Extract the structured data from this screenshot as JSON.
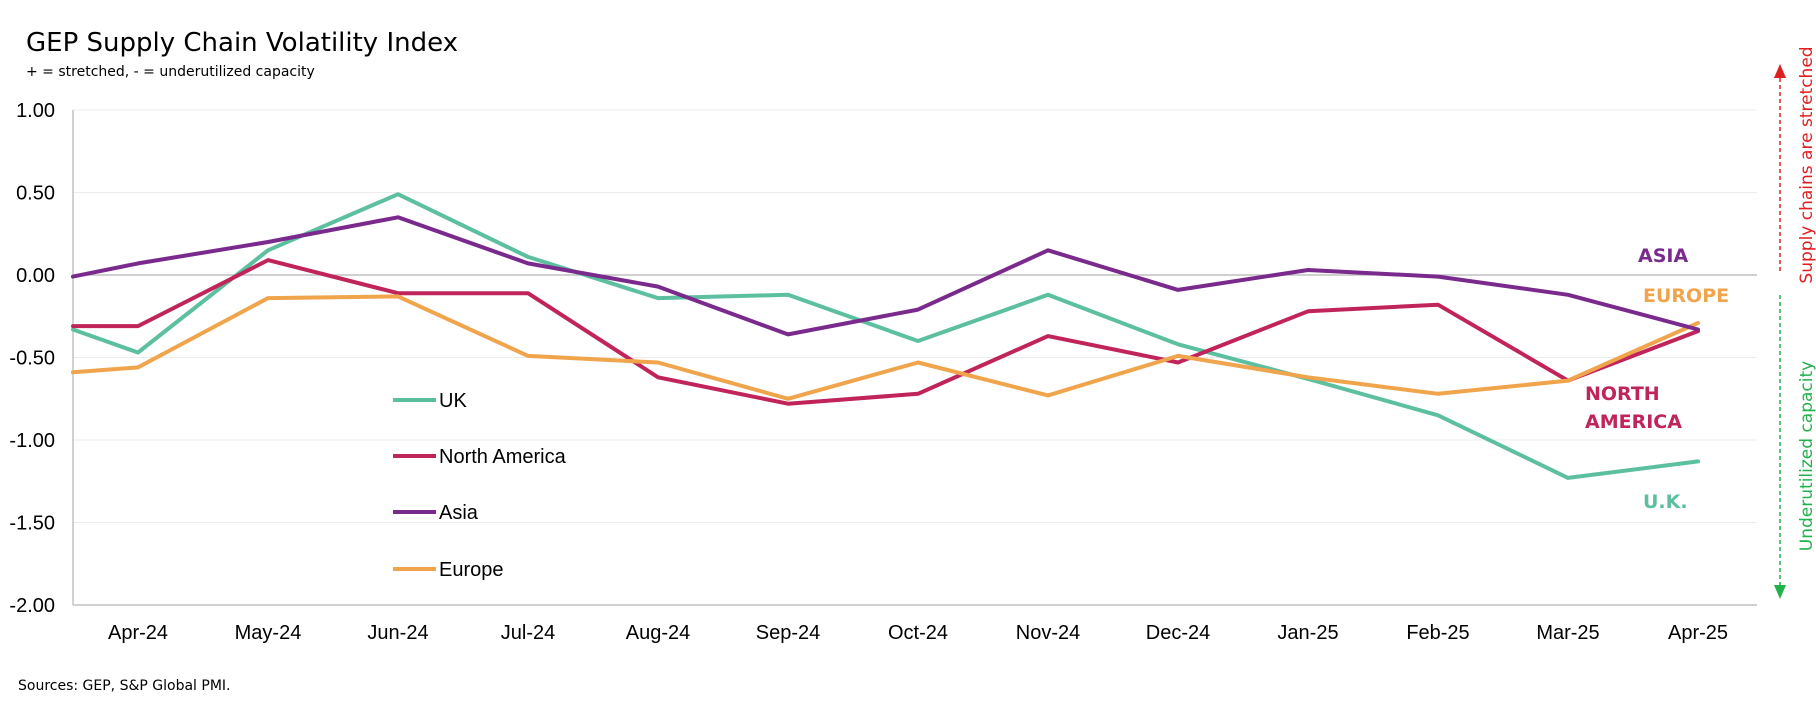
{
  "header": {
    "title": "GEP Supply Chain Volatility Index",
    "subtitle": "+ = stretched, - = underutilized capacity"
  },
  "footer": {
    "source": "Sources: GEP, S&P Global PMI."
  },
  "chart_data": {
    "type": "line",
    "title": "GEP Supply Chain Volatility Index",
    "subtitle": "+ = stretched, - = underutilized capacity",
    "categories": [
      "Apr-24",
      "May-24",
      "Jun-24",
      "Jul-24",
      "Aug-24",
      "Sep-24",
      "Oct-24",
      "Nov-24",
      "Dec-24",
      "Jan-25",
      "Feb-25",
      "Mar-25",
      "Apr-25"
    ],
    "ylim": [
      -2.0,
      1.0
    ],
    "yticks": [
      "1.00",
      "0.50",
      "0.00",
      "-0.50",
      "-1.00",
      "-1.50",
      "-2.00"
    ],
    "grid": true,
    "legend_placement": "center-left",
    "series": [
      {
        "name": "UK",
        "end_label": "U.K.",
        "color": "#5bbfa0",
        "start": -0.33,
        "values": [
          -0.47,
          0.15,
          0.49,
          0.11,
          -0.14,
          -0.12,
          -0.4,
          -0.12,
          -0.42,
          -0.63,
          -0.85,
          -1.23,
          -1.13
        ]
      },
      {
        "name": "North America",
        "end_label": "NORTH AMERICA",
        "color": "#c0245a",
        "start": -0.31,
        "values": [
          -0.31,
          0.09,
          -0.11,
          -0.11,
          -0.62,
          -0.78,
          -0.72,
          -0.37,
          -0.53,
          -0.22,
          -0.18,
          -0.64,
          -0.34
        ]
      },
      {
        "name": "Asia",
        "end_label": "ASIA",
        "color": "#7a2a8c",
        "start": -0.01,
        "values": [
          0.07,
          0.2,
          0.35,
          0.07,
          -0.07,
          -0.36,
          -0.21,
          0.15,
          -0.09,
          0.03,
          -0.01,
          -0.12,
          -0.33
        ]
      },
      {
        "name": "Europe",
        "end_label": "EUROPE",
        "color": "#f0a44c",
        "start": -0.59,
        "values": [
          -0.56,
          -0.14,
          -0.13,
          -0.49,
          -0.53,
          -0.75,
          -0.53,
          -0.73,
          -0.49,
          -0.62,
          -0.72,
          -0.64,
          -0.29
        ]
      }
    ],
    "side_annotations": {
      "top": {
        "text": "Supply chains are stretched",
        "color": "#e02020"
      },
      "bottom": {
        "text": "Underutilized capacity",
        "color": "#21b24b"
      }
    }
  }
}
